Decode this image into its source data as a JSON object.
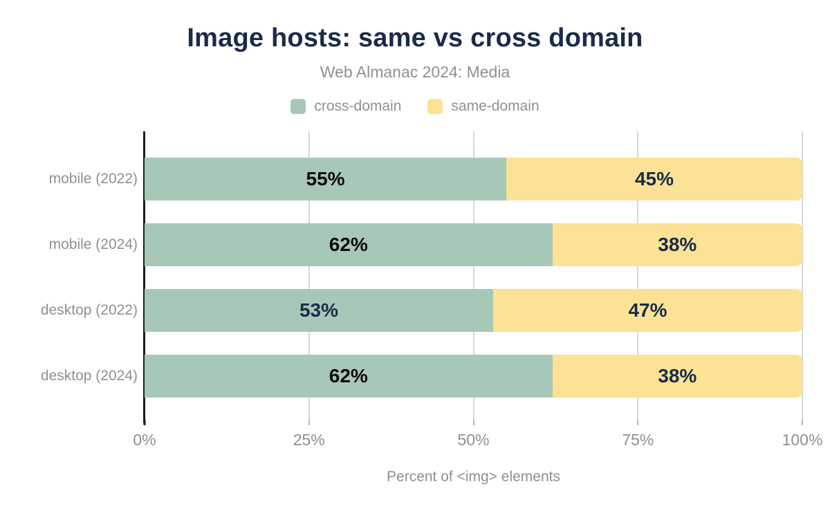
{
  "title": "Image hosts: same vs cross domain",
  "subtitle": "Web Almanac 2024: Media",
  "colors": {
    "title_navy": "#1a2b49",
    "muted_text": "#8d9093",
    "grid": "#d8d8d8",
    "axis": "#1c1c1c",
    "cross_domain_green": "#a7c8b6",
    "same_domain_yellow": "#fce294",
    "label_black": "#0b0b0b",
    "label_navy": "#1a2b49"
  },
  "chart_data": {
    "type": "bar",
    "orientation": "horizontal",
    "stacked": true,
    "title": "Image hosts: same vs cross domain",
    "subtitle": "Web Almanac 2024: Media",
    "categories": [
      "mobile (2022)",
      "mobile (2024)",
      "desktop (2022)",
      "desktop (2024)"
    ],
    "series": [
      {
        "name": "cross-domain",
        "color": "#a7c8b6",
        "values": [
          55,
          62,
          53,
          62
        ],
        "data_labels": [
          "55%",
          "62%",
          "53%",
          "62%"
        ],
        "data_label_colors": [
          "#0b0b0b",
          "#0b0b0b",
          "#1a2b49",
          "#0b0b0b"
        ]
      },
      {
        "name": "same-domain",
        "color": "#fce294",
        "values": [
          45,
          38,
          47,
          38
        ],
        "data_labels": [
          "45%",
          "38%",
          "47%",
          "38%"
        ],
        "data_label_colors": [
          "#1a2b49",
          "#1a2b49",
          "#1a2b49",
          "#1a2b49"
        ]
      }
    ],
    "xlabel": "Percent of <img> elements",
    "x_ticks": [
      0,
      25,
      50,
      75,
      100
    ],
    "x_tick_labels": [
      "0%",
      "25%",
      "50%",
      "75%",
      "100%"
    ],
    "xlim": [
      0,
      100
    ],
    "grid": true,
    "legend_position": "top"
  }
}
